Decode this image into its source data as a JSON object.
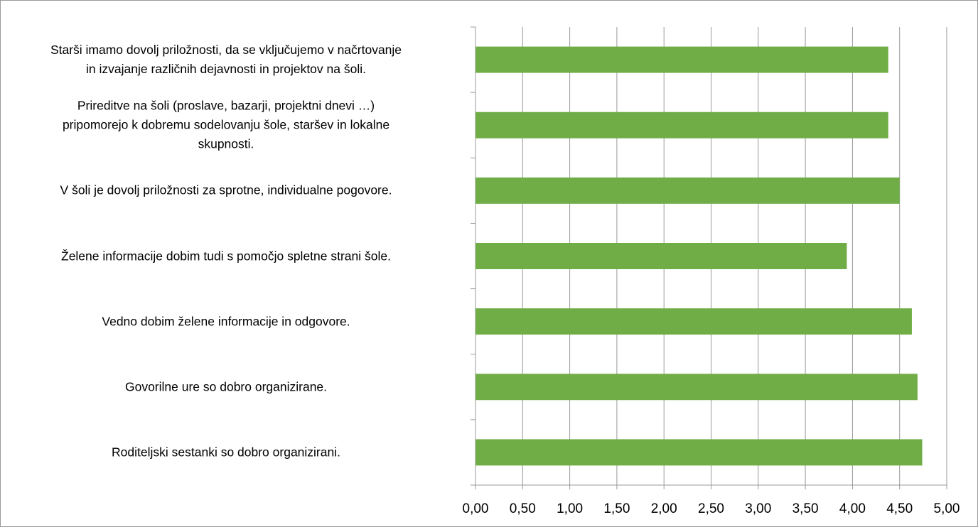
{
  "chart_data": {
    "type": "barh",
    "categories": [
      "Starši imamo dovolj priložnosti, da se vključujemo v načrtovanje\nin izvajanje različnih dejavnosti in projektov na šoli.",
      "Prireditve na šoli (proslave, bazarji, projektni dnevi …)\npripomorejo k dobremu sodelovanju šole,  staršev in lokalne\nskupnosti.",
      "V šoli je dovolj priložnosti za sprotne, individualne pogovore.",
      "Želene informacije dobim tudi s pomočjo spletne strani šole.",
      "Vedno dobim želene informacije in odgovore.",
      "Govorilne ure so dobro organizirane.",
      "Roditeljski sestanki so dobro organizirani."
    ],
    "values": [
      4.38,
      4.38,
      4.5,
      3.94,
      4.63,
      4.69,
      4.74
    ],
    "color": "#70ad47",
    "xlim": [
      0,
      5
    ],
    "xticks": [
      {
        "value": 0,
        "label": "0,00"
      },
      {
        "value": 0.5,
        "label": "0,50"
      },
      {
        "value": 1,
        "label": "1,00"
      },
      {
        "value": 1.5,
        "label": "1,50"
      },
      {
        "value": 2,
        "label": "2,00"
      },
      {
        "value": 2.5,
        "label": "2,50"
      },
      {
        "value": 3,
        "label": "3,00"
      },
      {
        "value": 3.5,
        "label": "3,50"
      },
      {
        "value": 4,
        "label": "4,00"
      },
      {
        "value": 4.5,
        "label": "4,50"
      },
      {
        "value": 5,
        "label": "5,00"
      }
    ],
    "grid": true
  }
}
